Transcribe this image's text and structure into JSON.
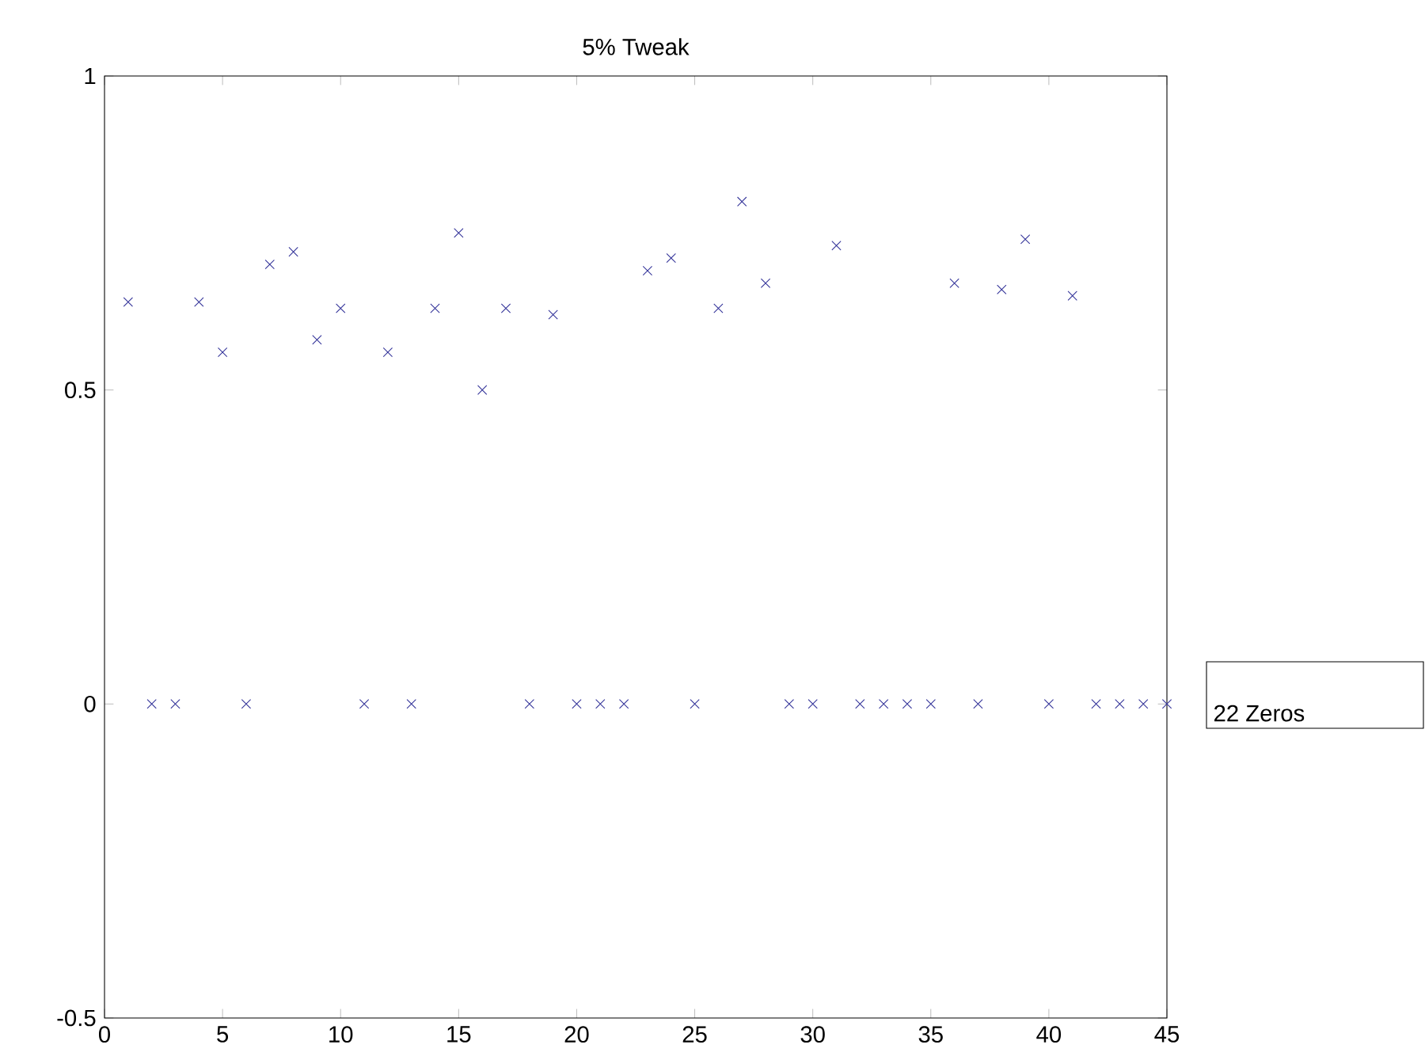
{
  "chart_data": {
    "type": "scatter",
    "title": "5% Tweak",
    "x": [
      1,
      2,
      3,
      4,
      5,
      6,
      7,
      8,
      9,
      10,
      11,
      12,
      13,
      14,
      15,
      16,
      17,
      18,
      19,
      20,
      21,
      22,
      23,
      24,
      25,
      26,
      27,
      28,
      29,
      30,
      31,
      32,
      33,
      34,
      35,
      36,
      37,
      38,
      39,
      40,
      41,
      42,
      43,
      44,
      45
    ],
    "series": [
      {
        "color": "#333399",
        "values": [
          0.64,
          0,
          0,
          0.64,
          0.56,
          0,
          0.7,
          0.72,
          0.58,
          0.63,
          0,
          0.56,
          0,
          0.63,
          0.75,
          0.5,
          0.63,
          0,
          0.62,
          0,
          0,
          0,
          0.69,
          0.71,
          0,
          0.63,
          0.8,
          0.67,
          0,
          0,
          0.73,
          0,
          0,
          0,
          0,
          0.67,
          0,
          0.66,
          0.74,
          0,
          0.65,
          0,
          0,
          0,
          0
        ]
      }
    ],
    "xlim": [
      0,
      45
    ],
    "ylim": [
      -0.5,
      1
    ],
    "xticks": [
      0,
      5,
      10,
      15,
      20,
      25,
      30,
      35,
      40,
      45
    ],
    "yticks": [
      -0.5,
      0,
      0.5,
      1
    ],
    "marker": "cross",
    "grid": false,
    "annotations": [
      "22 Zeros"
    ]
  }
}
